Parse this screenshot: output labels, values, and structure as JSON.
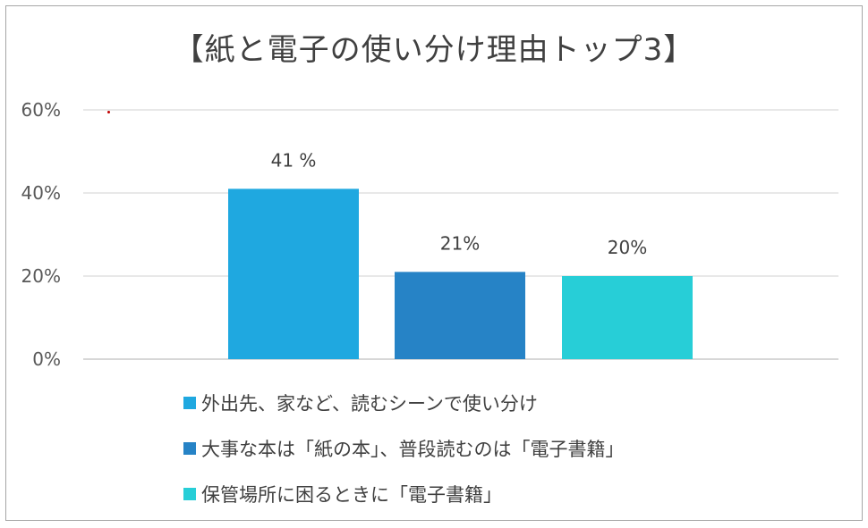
{
  "chart_data": {
    "type": "bar",
    "title": "【紙と電子の使い分け理由トップ3】",
    "ylim": [
      0,
      60
    ],
    "yticks": [
      0,
      20,
      40,
      60
    ],
    "ytick_labels": [
      "0%",
      "20%",
      "40%",
      "60%"
    ],
    "grid": true,
    "legend_position": "bottom",
    "series": [
      {
        "name": "外出先、家など、読むシーンで使い分け",
        "value": 41,
        "label": "41 %",
        "color": "#1FA8E0"
      },
      {
        "name": "大事な本は「紙の本」、普段読むのは「電子書籍」",
        "value": 21,
        "label": "21%",
        "color": "#2683C6"
      },
      {
        "name": "保管場所に困るときに「電子書籍」",
        "value": 20,
        "label": "20%",
        "color": "#27CED7"
      }
    ]
  }
}
